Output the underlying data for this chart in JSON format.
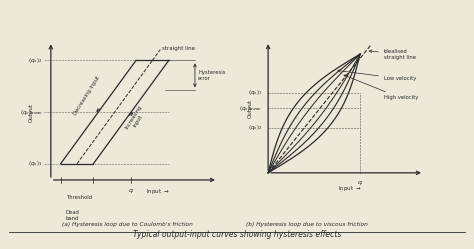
{
  "title": "Typical output-input curves showing hysteresis effects",
  "bg_color": "#ede8d8",
  "line_color": "#2a2a2a",
  "subplot_a_title": "(a) Hysteresis loop due to Coulomb's friction",
  "subplot_b_title": "(b) Hysteresis loop due to viscous friction",
  "lw": 0.9
}
